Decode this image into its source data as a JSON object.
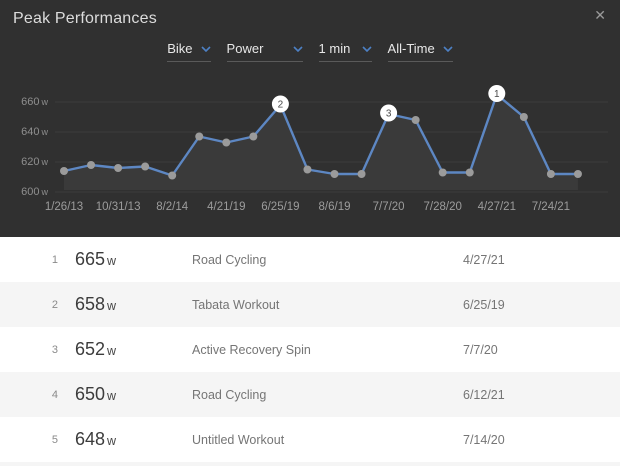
{
  "panel": {
    "title": "Peak Performances",
    "close_icon": "✕"
  },
  "filters": [
    {
      "id": "sport",
      "label": "Bike"
    },
    {
      "id": "metric",
      "label": "Power"
    },
    {
      "id": "duration",
      "label": "1 min"
    },
    {
      "id": "range",
      "label": "All-Time"
    }
  ],
  "chart_data": {
    "type": "line",
    "unit": "w",
    "ylim": [
      600,
      670
    ],
    "y_ticks": [
      660,
      640,
      620,
      600
    ],
    "x_tick_labels": [
      "1/26/13",
      "10/31/13",
      "8/2/14",
      "4/21/19",
      "6/25/19",
      "8/6/19",
      "7/7/20",
      "7/28/20",
      "4/27/21",
      "7/24/21"
    ],
    "values": [
      614,
      618,
      616,
      617,
      611,
      637,
      633,
      637,
      658,
      615,
      612,
      612,
      652,
      648,
      613,
      613,
      665,
      650,
      612,
      612
    ],
    "ranked_markers": [
      {
        "rank": 1,
        "point_index": 16
      },
      {
        "rank": 2,
        "point_index": 8
      },
      {
        "rank": 3,
        "point_index": 12
      }
    ],
    "grid": "horizontal",
    "legend": "none"
  },
  "colors": {
    "panel_bg": "#303030",
    "area_fill": "#3a3a3a",
    "gridline": "#3d3d3d",
    "line_blue": "#5d87c3",
    "point_gray": "#9b9b9b",
    "accent_blue": "#4d80c4",
    "marker_bg": "#ffffff",
    "marker_text": "#4a4a4a",
    "row_alt_bg": "#f5f5f5"
  },
  "table": {
    "rows": [
      {
        "rank": "1",
        "value": "665",
        "unit": "w",
        "activity": "Road Cycling",
        "date": "4/27/21"
      },
      {
        "rank": "2",
        "value": "658",
        "unit": "w",
        "activity": "Tabata Workout",
        "date": "6/25/19"
      },
      {
        "rank": "3",
        "value": "652",
        "unit": "w",
        "activity": "Active Recovery Spin",
        "date": "7/7/20"
      },
      {
        "rank": "4",
        "value": "650",
        "unit": "w",
        "activity": "Road Cycling",
        "date": "6/12/21"
      },
      {
        "rank": "5",
        "value": "648",
        "unit": "w",
        "activity": "Untitled Workout",
        "date": "7/14/20"
      }
    ]
  }
}
